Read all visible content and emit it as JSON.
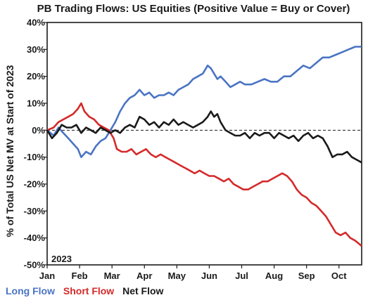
{
  "chart_data": {
    "type": "line",
    "title": "PB Trading Flows: US Equities (Positive Value = Buy or Cover)",
    "xlabel": "",
    "ylabel": "% of Total US Net MV at Start of 2023",
    "ylim": [
      -50,
      40
    ],
    "yticks": [
      40,
      30,
      20,
      10,
      0,
      -10,
      -20,
      -30,
      -40,
      -50
    ],
    "ytick_labels": [
      "40%",
      "30%",
      "20%",
      "10%",
      "0%",
      "-10%",
      "-20%",
      "-30%",
      "-40%",
      "-50%"
    ],
    "xlim": [
      0,
      9.7
    ],
    "x_ticks": [
      0,
      1,
      2,
      3,
      4,
      5,
      6,
      7,
      8,
      9
    ],
    "x_tick_labels": [
      "Jan",
      "Feb",
      "Mar",
      "Apr",
      "May",
      "Jun",
      "Jul",
      "Aug",
      "Sep",
      "Oct"
    ],
    "inset_label": "2023",
    "zero_line": "dashed",
    "legend": "bottom-left",
    "series": [
      {
        "name": "Long Flow",
        "color": "#4a74c4",
        "x": [
          0,
          0.2,
          0.35,
          0.5,
          0.65,
          0.8,
          0.95,
          1.05,
          1.2,
          1.35,
          1.5,
          1.65,
          1.8,
          1.9,
          2.0,
          2.1,
          2.25,
          2.4,
          2.55,
          2.7,
          2.85,
          3.0,
          3.15,
          3.3,
          3.45,
          3.6,
          3.75,
          3.9,
          4.05,
          4.2,
          4.35,
          4.5,
          4.65,
          4.8,
          4.95,
          5.05,
          5.15,
          5.25,
          5.35,
          5.5,
          5.65,
          5.8,
          5.95,
          6.1,
          6.3,
          6.5,
          6.7,
          6.9,
          7.1,
          7.3,
          7.5,
          7.7,
          7.9,
          8.1,
          8.3,
          8.5,
          8.7,
          8.9,
          9.1,
          9.3,
          9.5,
          9.7
        ],
        "values": [
          0,
          -2,
          1,
          -1,
          -3,
          -5,
          -7,
          -10,
          -8,
          -9,
          -6,
          -4,
          -3,
          -1,
          1,
          3,
          7,
          10,
          12,
          13,
          15,
          13,
          14,
          12,
          13,
          13,
          14,
          13,
          15,
          16,
          17,
          19,
          20,
          21,
          24,
          23,
          21,
          19,
          20,
          18,
          16,
          17,
          18,
          17,
          17,
          18,
          19,
          18,
          18,
          20,
          20,
          22,
          24,
          23,
          25,
          27,
          27,
          28,
          29,
          30,
          31,
          31
        ]
      },
      {
        "name": "Short Flow",
        "color": "#d42a2a",
        "x": [
          0,
          0.2,
          0.35,
          0.5,
          0.65,
          0.8,
          0.95,
          1.05,
          1.15,
          1.3,
          1.45,
          1.6,
          1.75,
          1.9,
          2.05,
          2.15,
          2.3,
          2.45,
          2.6,
          2.75,
          2.9,
          3.05,
          3.2,
          3.35,
          3.5,
          3.65,
          3.8,
          3.95,
          4.1,
          4.25,
          4.4,
          4.55,
          4.7,
          4.85,
          5.0,
          5.15,
          5.3,
          5.45,
          5.6,
          5.75,
          5.9,
          6.05,
          6.2,
          6.35,
          6.5,
          6.65,
          6.8,
          6.95,
          7.1,
          7.25,
          7.4,
          7.55,
          7.7,
          7.85,
          8.0,
          8.15,
          8.3,
          8.45,
          8.6,
          8.75,
          8.9,
          9.05,
          9.2,
          9.35,
          9.5,
          9.6,
          9.7
        ],
        "values": [
          0,
          1,
          3,
          4,
          5,
          6,
          8,
          10,
          7,
          5,
          4,
          2,
          1,
          0,
          -3,
          -7,
          -8,
          -8,
          -7,
          -9,
          -8,
          -7,
          -9,
          -10,
          -9,
          -10,
          -11,
          -12,
          -13,
          -14,
          -15,
          -16,
          -15,
          -16,
          -17,
          -17,
          -18,
          -19,
          -18,
          -20,
          -21,
          -22,
          -22,
          -21,
          -20,
          -19,
          -19,
          -18,
          -17,
          -16,
          -17,
          -19,
          -22,
          -24,
          -25,
          -27,
          -28,
          -30,
          -32,
          -35,
          -38,
          -39,
          -38,
          -40,
          -41,
          -42,
          -43
        ]
      },
      {
        "name": "Net Flow",
        "color": "#1a1a1a",
        "x": [
          0,
          0.15,
          0.3,
          0.45,
          0.6,
          0.75,
          0.9,
          1.05,
          1.2,
          1.35,
          1.5,
          1.65,
          1.8,
          1.95,
          2.1,
          2.25,
          2.4,
          2.55,
          2.7,
          2.85,
          3.0,
          3.15,
          3.3,
          3.45,
          3.6,
          3.75,
          3.9,
          4.05,
          4.2,
          4.35,
          4.5,
          4.65,
          4.8,
          4.95,
          5.05,
          5.15,
          5.25,
          5.35,
          5.5,
          5.65,
          5.8,
          5.95,
          6.1,
          6.25,
          6.4,
          6.55,
          6.7,
          6.85,
          7.0,
          7.15,
          7.3,
          7.45,
          7.6,
          7.75,
          7.9,
          8.05,
          8.2,
          8.35,
          8.5,
          8.65,
          8.8,
          8.95,
          9.1,
          9.25,
          9.4,
          9.55,
          9.7
        ],
        "values": [
          0,
          -3,
          -1,
          2,
          1,
          1,
          2,
          -1,
          1,
          0,
          -1,
          1,
          0,
          -1,
          0,
          -1,
          1,
          2,
          1,
          5,
          4,
          2,
          3,
          1,
          3,
          2,
          4,
          2,
          3,
          2,
          1,
          2,
          3,
          5,
          7,
          5,
          6,
          3,
          0,
          -1,
          -2,
          -2,
          -1,
          -3,
          -1,
          -2,
          -1,
          -1,
          -3,
          -1,
          -2,
          -3,
          -2,
          -4,
          -2,
          -1,
          -3,
          -2,
          -3,
          -6,
          -10,
          -9,
          -9,
          -8,
          -10,
          -11,
          -12
        ]
      }
    ]
  }
}
